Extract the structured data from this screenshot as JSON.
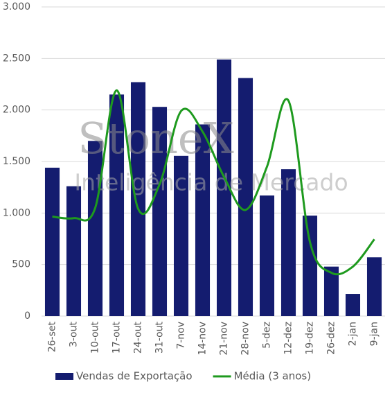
{
  "chart_data": {
    "type": "bar-line",
    "categories": [
      "26-set",
      "3-out",
      "10-out",
      "17-out",
      "24-out",
      "31-out",
      "7-nov",
      "14-nov",
      "21-nov",
      "28-nov",
      "5-dez",
      "12-dez",
      "19-dez",
      "26-dez",
      "2-jan",
      "9-jan"
    ],
    "series": [
      {
        "name": "Vendas de Exportação",
        "type": "bar",
        "color": "#141c6f",
        "values": [
          1440,
          1260,
          1700,
          2150,
          2270,
          2030,
          1555,
          1860,
          2490,
          2310,
          1170,
          1425,
          975,
          480,
          215,
          570
        ]
      },
      {
        "name": "Média (3 anos)",
        "type": "line",
        "smooth": true,
        "color": "#1e9a1e",
        "values": [
          965,
          950,
          1050,
          2190,
          1040,
          1280,
          1990,
          1790,
          1350,
          1030,
          1450,
          2090,
          720,
          420,
          480,
          745
        ]
      }
    ],
    "ylim": [
      0,
      3000
    ],
    "yticks": [
      0,
      500,
      {
        "value": 1000,
        "label": "1.000"
      },
      {
        "value": 1500,
        "label": "1.500"
      },
      {
        "value": 2000,
        "label": "2.000"
      },
      {
        "value": 2500,
        "label": "2.500"
      },
      {
        "value": 3000,
        "label": "3.000"
      }
    ],
    "grid": true,
    "legend": "bottom",
    "watermark": [
      "StoneX",
      "Inteligência de Mercado"
    ]
  }
}
